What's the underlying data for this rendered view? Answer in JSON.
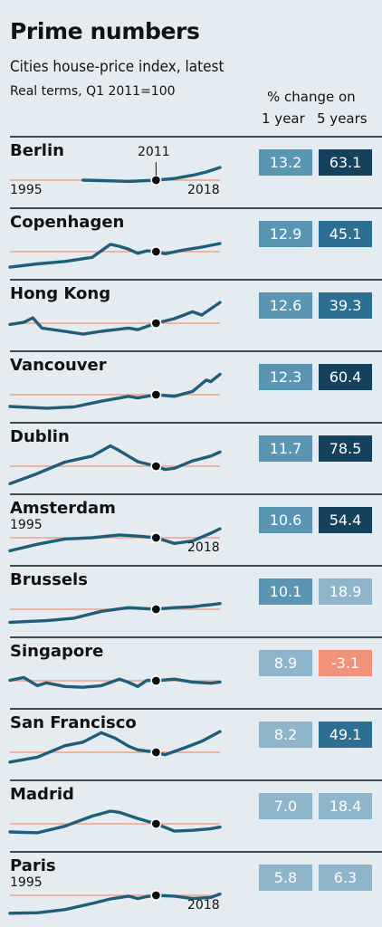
{
  "title": "Prime numbers",
  "subtitle": "Cities house-price index, latest",
  "note": "Real terms, Q1 2011=100",
  "column_header": "% change on",
  "col_1y": "1 year",
  "col_5y": "5 years",
  "axis_labels": {
    "start": "1995",
    "end": "2018",
    "marker": "2011"
  },
  "colors": {
    "baseline": "#f0a18a",
    "line": "#1f5e7a",
    "box_light": "#8fb5ca",
    "box_mid": "#5b95b4",
    "box_dark": "#2d6f92",
    "box_darkest": "#14415c",
    "box_negative": "#f0937a"
  },
  "chart_data": {
    "type": "line",
    "x_range": [
      1995,
      2018
    ],
    "y_reference": 100,
    "series": [
      {
        "name": "Berlin",
        "one_year": "13.2",
        "five_years": "63.1",
        "values": [
          [
            2003,
            100
          ],
          [
            2005,
            99
          ],
          [
            2008,
            97
          ],
          [
            2011,
            100
          ],
          [
            2013,
            104
          ],
          [
            2015,
            112
          ],
          [
            2016.5,
            120
          ],
          [
            2018,
            131
          ]
        ]
      },
      {
        "name": "Copenhagen",
        "one_year": "12.9",
        "five_years": "45.1",
        "values": [
          [
            1995,
            62
          ],
          [
            1998,
            70
          ],
          [
            2001,
            76
          ],
          [
            2004,
            86
          ],
          [
            2006,
            118
          ],
          [
            2007,
            113
          ],
          [
            2008,
            106
          ],
          [
            2009,
            96
          ],
          [
            2010,
            102
          ],
          [
            2011,
            100
          ],
          [
            2012,
            95
          ],
          [
            2014,
            104
          ],
          [
            2016,
            111
          ],
          [
            2018,
            120
          ]
        ]
      },
      {
        "name": "Hong Kong",
        "one_year": "12.6",
        "five_years": "39.3",
        "values": [
          [
            1995,
            97
          ],
          [
            1996.5,
            102
          ],
          [
            1997.5,
            113
          ],
          [
            1998.5,
            88
          ],
          [
            2001,
            80
          ],
          [
            2003,
            73
          ],
          [
            2005,
            80
          ],
          [
            2008,
            88
          ],
          [
            2009,
            84
          ],
          [
            2011,
            100
          ],
          [
            2013,
            111
          ],
          [
            2015,
            128
          ],
          [
            2016,
            120
          ],
          [
            2018,
            151
          ]
        ]
      },
      {
        "name": "Vancouver",
        "one_year": "12.3",
        "five_years": "60.4",
        "values": [
          [
            1995,
            71
          ],
          [
            1999,
            67
          ],
          [
            2002,
            70
          ],
          [
            2005,
            84
          ],
          [
            2008,
            96
          ],
          [
            2009,
            92
          ],
          [
            2011,
            100
          ],
          [
            2013,
            96
          ],
          [
            2015,
            108
          ],
          [
            2016.5,
            136
          ],
          [
            2017,
            132
          ],
          [
            2018,
            150
          ]
        ]
      },
      {
        "name": "Dublin",
        "one_year": "11.7",
        "five_years": "78.5",
        "values": [
          [
            1995,
            57
          ],
          [
            1998,
            82
          ],
          [
            2001,
            110
          ],
          [
            2004,
            125
          ],
          [
            2006,
            150
          ],
          [
            2007,
            138
          ],
          [
            2009,
            111
          ],
          [
            2011,
            100
          ],
          [
            2012,
            92
          ],
          [
            2013,
            95
          ],
          [
            2015,
            113
          ],
          [
            2017,
            125
          ],
          [
            2018,
            135
          ]
        ]
      },
      {
        "name": "Amsterdam",
        "one_year": "10.6",
        "five_years": "54.4",
        "values": [
          [
            1995,
            68
          ],
          [
            1998,
            84
          ],
          [
            2001,
            97
          ],
          [
            2004,
            100
          ],
          [
            2007,
            107
          ],
          [
            2009,
            104
          ],
          [
            2011,
            100
          ],
          [
            2013,
            86
          ],
          [
            2015,
            92
          ],
          [
            2017,
            111
          ],
          [
            2018,
            122
          ]
        ]
      },
      {
        "name": "Brussels",
        "one_year": "10.1",
        "five_years": "18.9",
        "values": [
          [
            1995,
            68
          ],
          [
            1999,
            72
          ],
          [
            2002,
            78
          ],
          [
            2005,
            95
          ],
          [
            2008,
            104
          ],
          [
            2011,
            100
          ],
          [
            2013,
            104
          ],
          [
            2015,
            106
          ],
          [
            2016,
            109
          ],
          [
            2017,
            111
          ],
          [
            2018,
            114
          ]
        ]
      },
      {
        "name": "Singapore",
        "one_year": "8.9",
        "five_years": "-3.1",
        "values": [
          [
            1995,
            101
          ],
          [
            1996.5,
            108
          ],
          [
            1998,
            88
          ],
          [
            1999,
            95
          ],
          [
            2001,
            86
          ],
          [
            2003,
            84
          ],
          [
            2005,
            88
          ],
          [
            2007,
            104
          ],
          [
            2008,
            96
          ],
          [
            2009,
            86
          ],
          [
            2010,
            101
          ],
          [
            2011,
            100
          ],
          [
            2013,
            104
          ],
          [
            2015,
            97
          ],
          [
            2017,
            94
          ],
          [
            2018,
            97
          ]
        ]
      },
      {
        "name": "San Francisco",
        "one_year": "8.2",
        "five_years": "49.1",
        "values": [
          [
            1995,
            76
          ],
          [
            1998,
            88
          ],
          [
            2001,
            116
          ],
          [
            2003,
            125
          ],
          [
            2005,
            148
          ],
          [
            2006.5,
            135
          ],
          [
            2008,
            115
          ],
          [
            2009,
            106
          ],
          [
            2011,
            100
          ],
          [
            2012,
            94
          ],
          [
            2014,
            110
          ],
          [
            2016,
            127
          ],
          [
            2018,
            151
          ]
        ]
      },
      {
        "name": "Madrid",
        "one_year": "7.0",
        "five_years": "18.4",
        "values": [
          [
            1995,
            80
          ],
          [
            1998,
            78
          ],
          [
            2001,
            94
          ],
          [
            2004,
            119
          ],
          [
            2006,
            131
          ],
          [
            2007,
            128
          ],
          [
            2009,
            113
          ],
          [
            2011,
            100
          ],
          [
            2012,
            91
          ],
          [
            2013,
            82
          ],
          [
            2015,
            84
          ],
          [
            2017,
            88
          ],
          [
            2018,
            92
          ]
        ]
      },
      {
        "name": "Paris",
        "one_year": "5.8",
        "five_years": "6.3",
        "values": [
          [
            1995,
            56
          ],
          [
            1998,
            57
          ],
          [
            2001,
            65
          ],
          [
            2004,
            80
          ],
          [
            2006,
            91
          ],
          [
            2008,
            98
          ],
          [
            2009,
            92
          ],
          [
            2010,
            97
          ],
          [
            2011,
            100
          ],
          [
            2013,
            98
          ],
          [
            2015,
            92
          ],
          [
            2017,
            95
          ],
          [
            2018,
            103
          ]
        ]
      }
    ]
  },
  "rows": [
    {
      "city": "Berlin",
      "one_year": "13.2",
      "five_years": "63.1",
      "c1": "box_mid",
      "c5": "box_darkest"
    },
    {
      "city": "Copenhagen",
      "one_year": "12.9",
      "five_years": "45.1",
      "c1": "box_mid",
      "c5": "box_dark"
    },
    {
      "city": "Hong Kong",
      "one_year": "12.6",
      "five_years": "39.3",
      "c1": "box_mid",
      "c5": "box_dark"
    },
    {
      "city": "Vancouver",
      "one_year": "12.3",
      "five_years": "60.4",
      "c1": "box_mid",
      "c5": "box_darkest"
    },
    {
      "city": "Dublin",
      "one_year": "11.7",
      "five_years": "78.5",
      "c1": "box_mid",
      "c5": "box_darkest"
    },
    {
      "city": "Amsterdam",
      "one_year": "10.6",
      "five_years": "54.4",
      "c1": "box_mid",
      "c5": "box_darkest"
    },
    {
      "city": "Brussels",
      "one_year": "10.1",
      "five_years": "18.9",
      "c1": "box_mid",
      "c5": "box_light"
    },
    {
      "city": "Singapore",
      "one_year": "8.9",
      "five_years": "-3.1",
      "c1": "box_light",
      "c5": "box_negative"
    },
    {
      "city": "San Francisco",
      "one_year": "8.2",
      "five_years": "49.1",
      "c1": "box_light",
      "c5": "box_dark"
    },
    {
      "city": "Madrid",
      "one_year": "7.0",
      "five_years": "18.4",
      "c1": "box_light",
      "c5": "box_light"
    },
    {
      "city": "Paris",
      "one_year": "5.8",
      "five_years": "6.3",
      "c1": "box_light",
      "c5": "box_light"
    }
  ]
}
